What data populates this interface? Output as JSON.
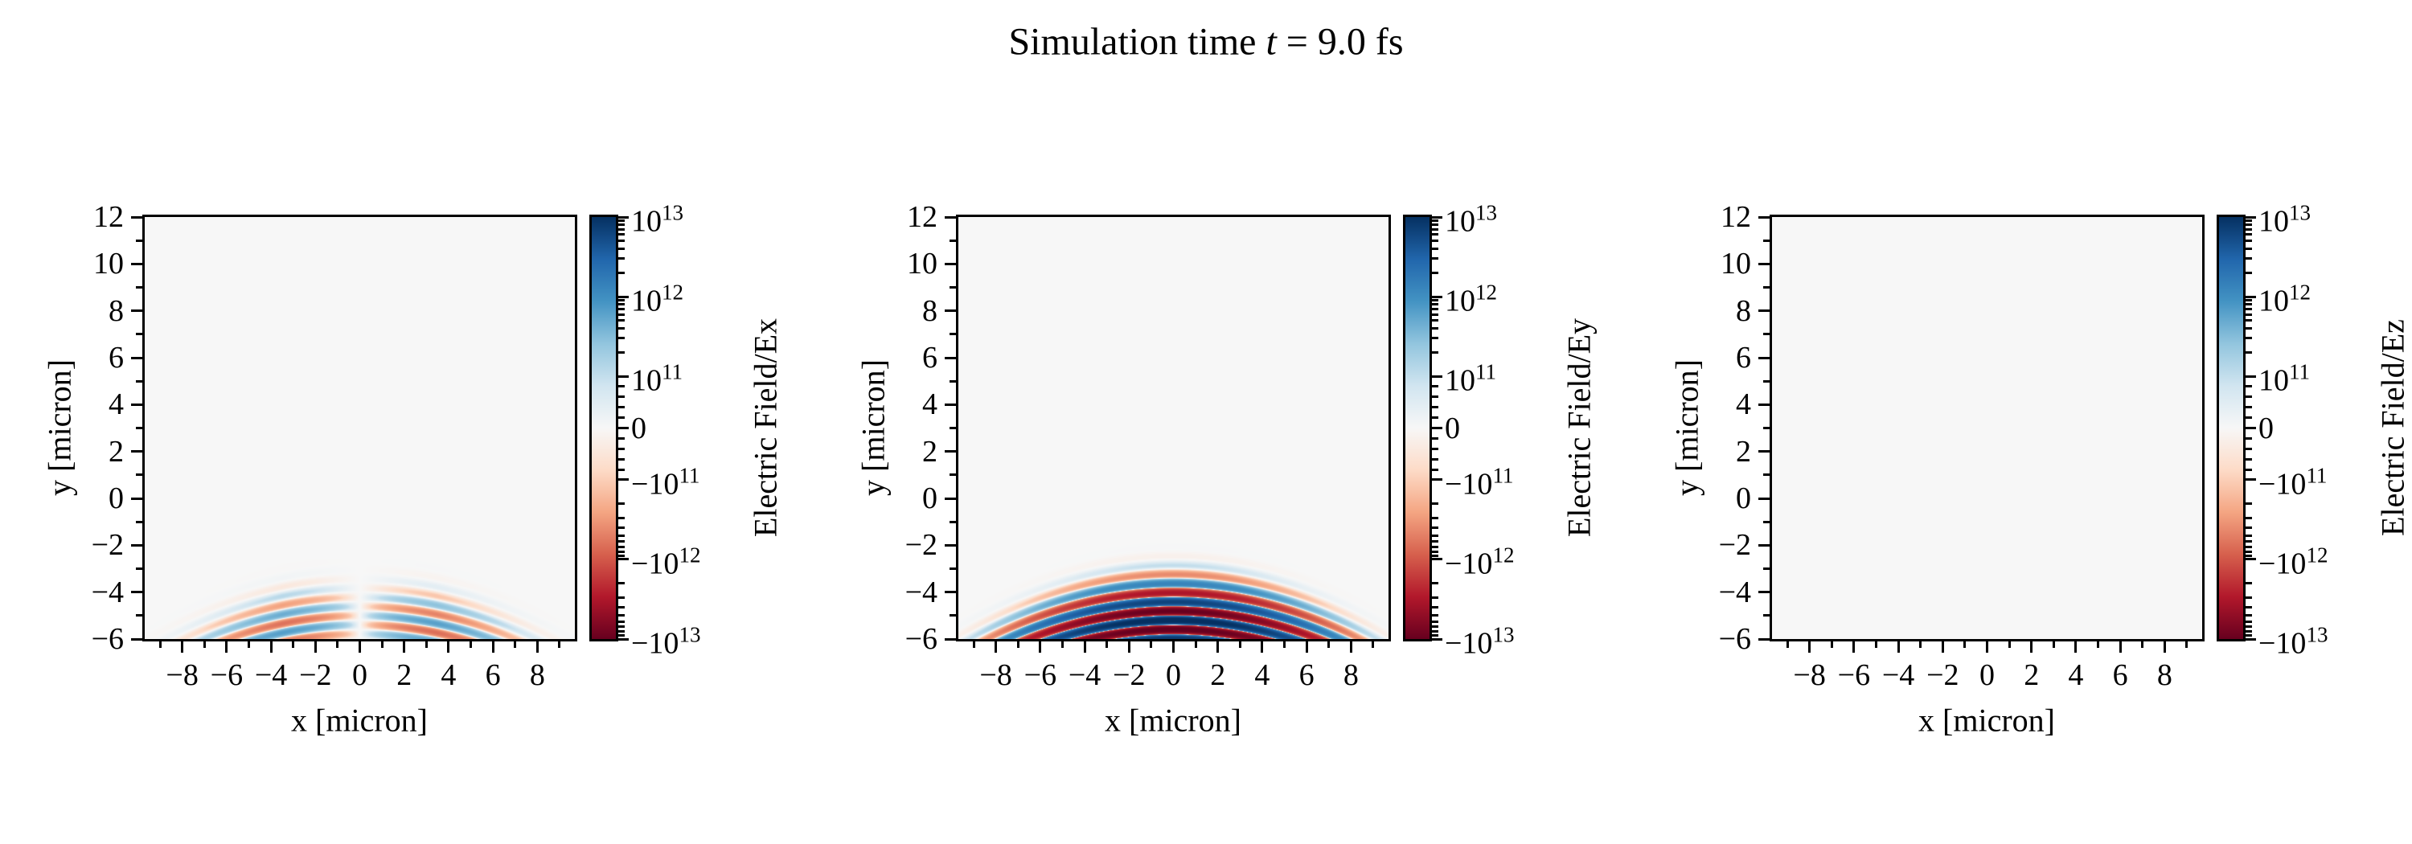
{
  "figure": {
    "background": "#ffffff",
    "text_color": "#000000"
  },
  "title": {
    "full": "Simulation time t = 9.0 fs",
    "prefix": "Simulation time ",
    "variable": "t",
    "suffix": " = 9.0 fs"
  },
  "chart_data": {
    "type": "heatmap",
    "title": "Simulation time t = 9.0 fs",
    "xlabel": "x [micron]",
    "ylabel": "y [micron]",
    "xlim": [
      -9.69,
      9.69
    ],
    "ylim": [
      -6,
      12
    ],
    "grid": false,
    "xticks": [
      {
        "v": -8,
        "label": "−8"
      },
      {
        "v": -6,
        "label": "−6"
      },
      {
        "v": -4,
        "label": "−4"
      },
      {
        "v": -2,
        "label": "−2"
      },
      {
        "v": 0,
        "label": "0"
      },
      {
        "v": 2,
        "label": "2"
      },
      {
        "v": 4,
        "label": "4"
      },
      {
        "v": 6,
        "label": "6"
      },
      {
        "v": 8,
        "label": "8"
      }
    ],
    "yticks": [
      {
        "v": 12,
        "label": "12"
      },
      {
        "v": 10,
        "label": "10"
      },
      {
        "v": 8,
        "label": "8"
      },
      {
        "v": 6,
        "label": "6"
      },
      {
        "v": 4,
        "label": "4"
      },
      {
        "v": 2,
        "label": "2"
      },
      {
        "v": 0,
        "label": "0"
      },
      {
        "v": -2,
        "label": "−2"
      },
      {
        "v": -4,
        "label": "−4"
      },
      {
        "v": -6,
        "label": "−6"
      }
    ],
    "x_minor_ticks": [
      -9,
      -7,
      -5,
      -3,
      -1,
      1,
      3,
      5,
      7,
      9
    ],
    "y_minor_ticks": [
      -5,
      -3,
      -1,
      1,
      3,
      5,
      7,
      9,
      11
    ],
    "colorbar": {
      "scale": "symlog",
      "vmin": -10000000000000.0,
      "vmax": 10000000000000.0,
      "linthresh": 100000000000.0,
      "linear_halfwidth_units": 0.65,
      "log_decades": 2,
      "ticks": [
        {
          "v": 10000000000000.0,
          "label": "10^13"
        },
        {
          "v": 1000000000000.0,
          "label": "10^12"
        },
        {
          "v": 100000000000.0,
          "label": "10^11"
        },
        {
          "v": 0,
          "label": "0"
        },
        {
          "v": -100000000000.0,
          "label": "−10^11"
        },
        {
          "v": -1000000000000.0,
          "label": "−10^12"
        },
        {
          "v": -10000000000000.0,
          "label": "−10^13"
        }
      ],
      "colormap": "RdBu",
      "colors_low_to_high": [
        "#67001f",
        "#b2182b",
        "#d6604d",
        "#f4a582",
        "#fddbc7",
        "#f7f7f7",
        "#d1e5f0",
        "#92c5de",
        "#4393c3",
        "#2166ac",
        "#053061"
      ]
    },
    "pulse": {
      "center_x": 0,
      "center_y": -5.3,
      "sigma_x": 4.0,
      "sigma_y": 0.8,
      "wavelength": 0.8,
      "phase_ref_y": -6,
      "wavefront_curvature_R": 18,
      "antisym_node_width": 3.5
    },
    "panels": [
      {
        "name": "Ex",
        "colorbar_label": "Electric Field/Ex",
        "amplitude": 1000000000000.0,
        "symmetry": "antisym-x",
        "phase": "sin"
      },
      {
        "name": "Ey",
        "colorbar_label": "Electric Field/Ey",
        "amplitude": 12000000000000.0,
        "symmetry": "sym",
        "phase": "cos"
      },
      {
        "name": "Ez",
        "colorbar_label": "Electric Field/Ez",
        "amplitude": 0,
        "symmetry": "zero",
        "phase": "cos"
      }
    ]
  }
}
